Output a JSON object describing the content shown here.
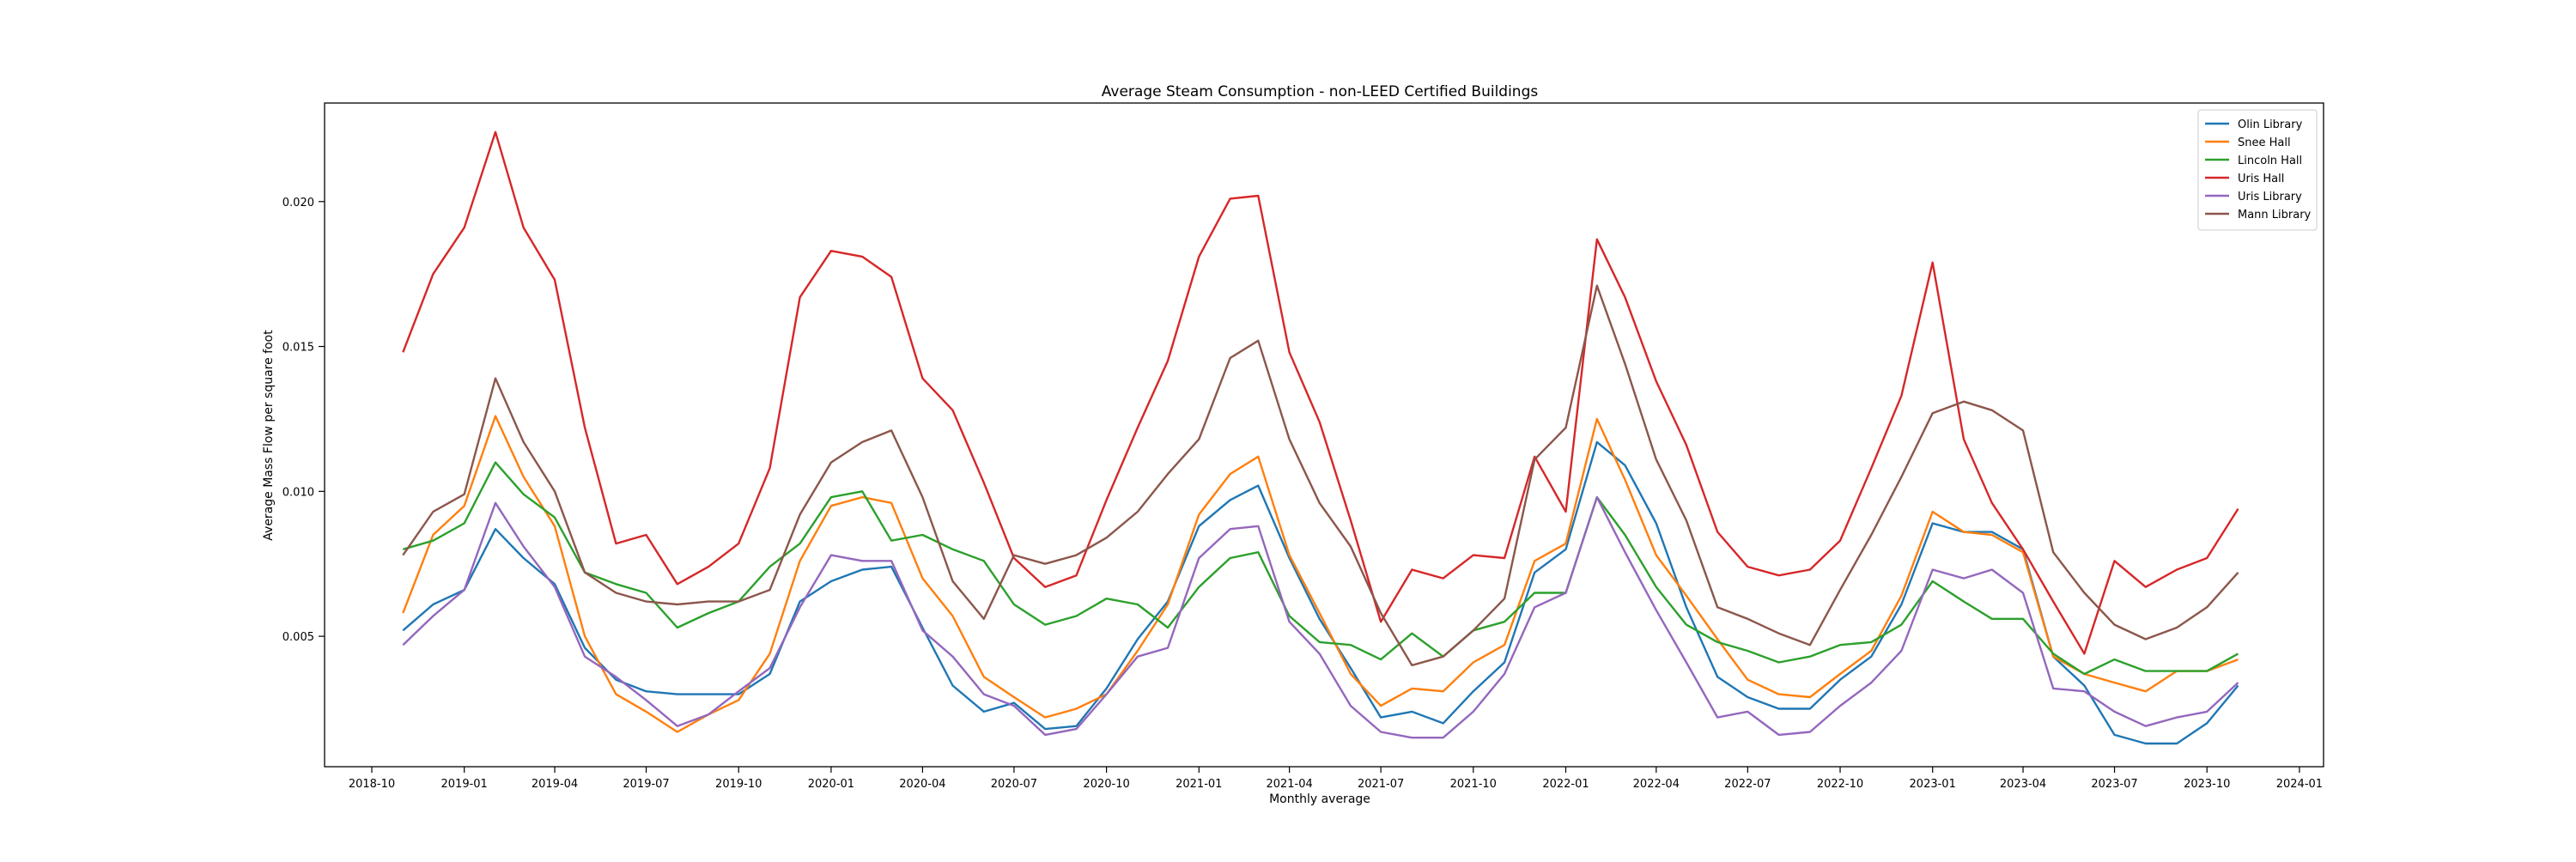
{
  "chart_data": {
    "type": "line",
    "title": "Average Steam Consumption - non-LEED Certified Buildings",
    "xlabel": "Monthly average",
    "ylabel": "Average Mass Flow per square foot",
    "x": [
      "2018-11",
      "2018-12",
      "2019-01",
      "2019-02",
      "2019-03",
      "2019-04",
      "2019-05",
      "2019-06",
      "2019-07",
      "2019-08",
      "2019-09",
      "2019-10",
      "2019-11",
      "2019-12",
      "2020-01",
      "2020-02",
      "2020-03",
      "2020-04",
      "2020-05",
      "2020-06",
      "2020-07",
      "2020-08",
      "2020-09",
      "2020-10",
      "2020-11",
      "2020-12",
      "2021-01",
      "2021-02",
      "2021-03",
      "2021-04",
      "2021-05",
      "2021-06",
      "2021-07",
      "2021-08",
      "2021-09",
      "2021-10",
      "2021-11",
      "2021-12",
      "2022-01",
      "2022-02",
      "2022-03",
      "2022-04",
      "2022-05",
      "2022-06",
      "2022-07",
      "2022-08",
      "2022-09",
      "2022-10",
      "2022-11",
      "2022-12",
      "2023-01",
      "2023-02",
      "2023-03",
      "2023-04",
      "2023-05",
      "2023-06",
      "2023-07",
      "2023-08",
      "2023-09",
      "2023-10",
      "2023-11"
    ],
    "xlim": [
      "2018-08-15",
      "2024-01-25"
    ],
    "ylim": [
      0.0005,
      0.0234
    ],
    "x_ticks": [
      "2018-10",
      "2019-01",
      "2019-04",
      "2019-07",
      "2019-10",
      "2020-01",
      "2020-04",
      "2020-07",
      "2020-10",
      "2021-01",
      "2021-04",
      "2021-07",
      "2021-10",
      "2022-01",
      "2022-04",
      "2022-07",
      "2022-10",
      "2023-01",
      "2023-04",
      "2023-07",
      "2023-10",
      "2024-01"
    ],
    "y_ticks": [
      "0.005",
      "0.010",
      "0.015",
      "0.020"
    ],
    "grid": false,
    "legend_position": "top-right",
    "series": [
      {
        "name": "Olin Library",
        "color": "#1f77b4",
        "values": [
          0.0052,
          0.0061,
          0.0066,
          0.0087,
          0.0077,
          0.0068,
          0.0046,
          0.0035,
          0.0031,
          0.003,
          0.003,
          0.003,
          0.0037,
          0.0062,
          0.0069,
          0.0073,
          0.0074,
          0.0053,
          0.0033,
          0.0024,
          0.0027,
          0.0018,
          0.0019,
          0.0032,
          0.0049,
          0.0062,
          0.0088,
          0.0097,
          0.0102,
          0.0077,
          0.0056,
          0.0039,
          0.0022,
          0.0024,
          0.002,
          0.0031,
          0.0041,
          0.0072,
          0.008,
          0.0117,
          0.0109,
          0.0089,
          0.006,
          0.0036,
          0.0029,
          0.0025,
          0.0025,
          0.0035,
          0.0043,
          0.0061,
          0.0089,
          0.0086,
          0.0086,
          0.008,
          0.0043,
          0.0033,
          0.0016,
          0.0013,
          0.0013,
          0.002,
          0.0033
        ]
      },
      {
        "name": "Snee Hall",
        "color": "#ff7f0e",
        "values": [
          0.0058,
          0.0085,
          0.0095,
          0.0126,
          0.0105,
          0.0088,
          0.005,
          0.003,
          0.0024,
          0.0017,
          0.0023,
          0.0028,
          0.0044,
          0.0076,
          0.0095,
          0.0098,
          0.0096,
          0.007,
          0.0057,
          0.0036,
          0.0029,
          0.0022,
          0.0025,
          0.003,
          0.0045,
          0.0061,
          0.0092,
          0.0106,
          0.0112,
          0.0078,
          0.0058,
          0.0037,
          0.0026,
          0.0032,
          0.0031,
          0.0041,
          0.0047,
          0.0076,
          0.0082,
          0.0125,
          0.0104,
          0.0078,
          0.0064,
          0.0049,
          0.0035,
          0.003,
          0.0029,
          0.0037,
          0.0045,
          0.0064,
          0.0093,
          0.0086,
          0.0085,
          0.0079,
          0.0043,
          0.0037,
          0.0034,
          0.0031,
          0.0038,
          0.0038,
          0.0042
        ]
      },
      {
        "name": "Lincoln Hall",
        "color": "#2ca02c",
        "values": [
          0.008,
          0.0083,
          0.0089,
          0.011,
          0.0099,
          0.0091,
          0.0072,
          0.0068,
          0.0065,
          0.0053,
          0.0058,
          0.0062,
          0.0074,
          0.0082,
          0.0098,
          0.01,
          0.0083,
          0.0085,
          0.008,
          0.0076,
          0.0061,
          0.0054,
          0.0057,
          0.0063,
          0.0061,
          0.0053,
          0.0067,
          0.0077,
          0.0079,
          0.0057,
          0.0048,
          0.0047,
          0.0042,
          0.0051,
          0.0043,
          0.0052,
          0.0055,
          0.0065,
          0.0065,
          0.0098,
          0.0085,
          0.0067,
          0.0054,
          0.0048,
          0.0045,
          0.0041,
          0.0043,
          0.0047,
          0.0048,
          0.0054,
          0.0069,
          0.0062,
          0.0056,
          0.0056,
          0.0044,
          0.0037,
          0.0042,
          0.0038,
          0.0038,
          0.0038,
          0.0044
        ]
      },
      {
        "name": "Uris Hall",
        "color": "#d62728",
        "values": [
          0.0148,
          0.0175,
          0.0191,
          0.0224,
          0.0191,
          0.0173,
          0.0122,
          0.0082,
          0.0085,
          0.0068,
          0.0074,
          0.0082,
          0.0108,
          0.0167,
          0.0183,
          0.0181,
          0.0174,
          0.0139,
          0.0128,
          0.0103,
          0.0077,
          0.0067,
          0.0071,
          0.0097,
          0.0122,
          0.0145,
          0.0181,
          0.0201,
          0.0202,
          0.0148,
          0.0124,
          0.009,
          0.0055,
          0.0073,
          0.007,
          0.0078,
          0.0077,
          0.0112,
          0.0093,
          0.0187,
          0.0167,
          0.0138,
          0.0116,
          0.0086,
          0.0074,
          0.0071,
          0.0073,
          0.0083,
          0.0108,
          0.0133,
          0.0179,
          0.0118,
          0.0096,
          0.008,
          0.0062,
          0.0044,
          0.0076,
          0.0067,
          0.0073,
          0.0077,
          0.0094
        ]
      },
      {
        "name": "Uris Library",
        "color": "#9467bd",
        "values": [
          0.0047,
          0.0057,
          0.0066,
          0.0096,
          0.0081,
          0.0067,
          0.0043,
          0.0036,
          0.0028,
          0.0019,
          0.0023,
          0.0031,
          0.0039,
          0.006,
          0.0078,
          0.0076,
          0.0076,
          0.0052,
          0.0043,
          0.003,
          0.0026,
          0.0016,
          0.0018,
          0.003,
          0.0043,
          0.0046,
          0.0077,
          0.0087,
          0.0088,
          0.0055,
          0.0044,
          0.0026,
          0.0017,
          0.0015,
          0.0015,
          0.0024,
          0.0037,
          0.006,
          0.0065,
          0.0098,
          0.0079,
          0.0059,
          0.0041,
          0.0022,
          0.0024,
          0.0016,
          0.0017,
          0.0026,
          0.0034,
          0.0045,
          0.0073,
          0.007,
          0.0073,
          0.0065,
          0.0032,
          0.0031,
          0.0024,
          0.0019,
          0.0022,
          0.0024,
          0.0034
        ]
      },
      {
        "name": "Mann Library",
        "color": "#8c564b",
        "values": [
          0.0078,
          0.0093,
          0.0099,
          0.0139,
          0.0117,
          0.01,
          0.0072,
          0.0065,
          0.0062,
          0.0061,
          0.0062,
          0.0062,
          0.0066,
          0.0092,
          0.011,
          0.0117,
          0.0121,
          0.0098,
          0.0069,
          0.0056,
          0.0078,
          0.0075,
          0.0078,
          0.0084,
          0.0093,
          0.0106,
          0.0118,
          0.0146,
          0.0152,
          0.0118,
          0.0096,
          0.0081,
          0.0058,
          0.004,
          0.0043,
          0.0052,
          0.0063,
          0.0111,
          0.0122,
          0.0171,
          0.0144,
          0.0111,
          0.009,
          0.006,
          0.0056,
          0.0051,
          0.0047,
          0.0066,
          0.0085,
          0.0105,
          0.0127,
          0.0131,
          0.0128,
          0.0121,
          0.0079,
          0.0065,
          0.0054,
          0.0049,
          0.0053,
          0.006,
          0.0072
        ]
      }
    ]
  }
}
